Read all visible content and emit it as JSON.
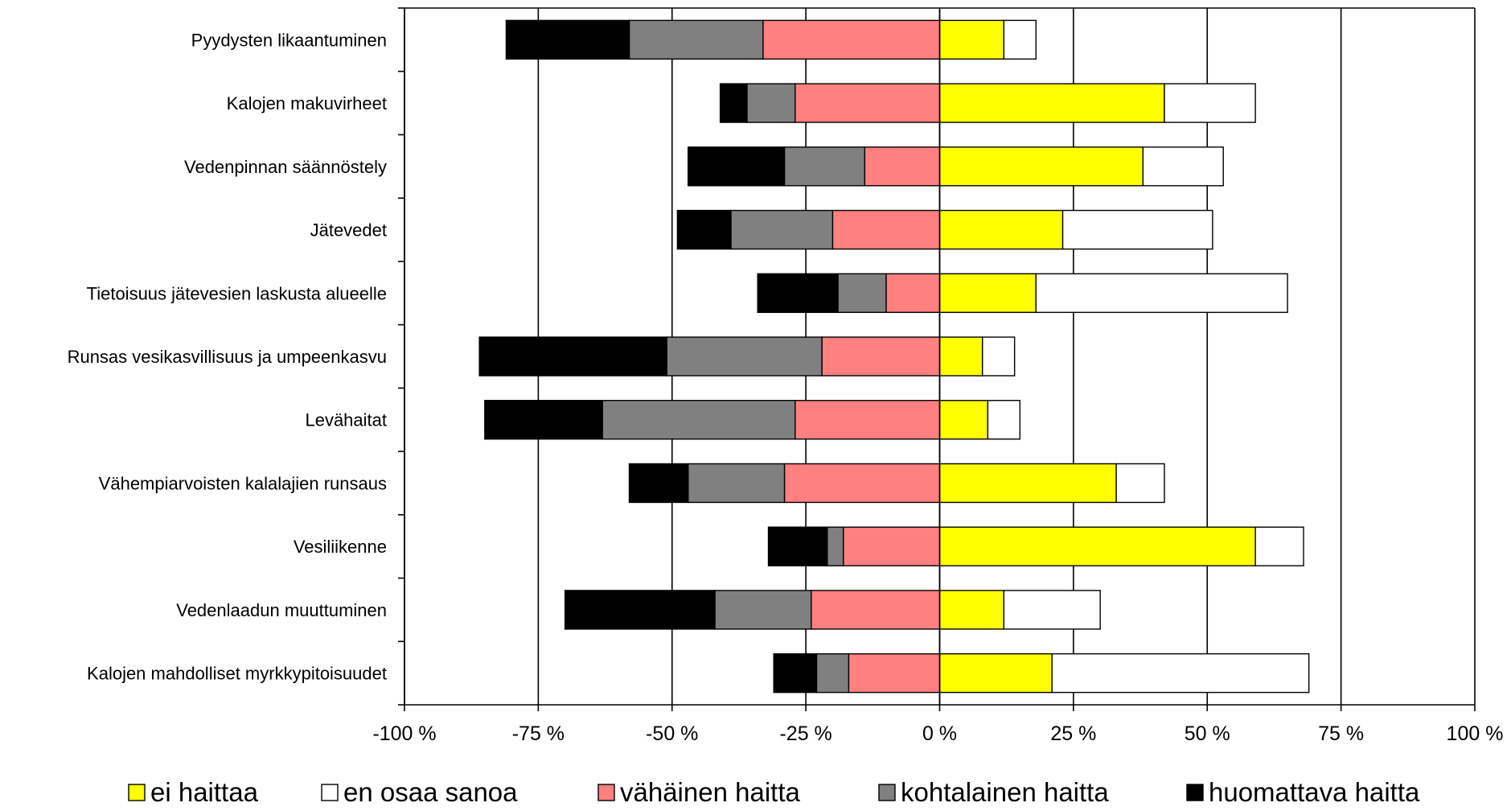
{
  "chart_data": {
    "type": "bar",
    "orientation": "horizontal",
    "stacked": "diverging",
    "categories": [
      "Pyydysten likaantuminen",
      "Kalojen makuvirheet",
      "Vedenpinnan säännöstely",
      "Jätevedet",
      "Tietoisuus jätevesien laskusta alueelle",
      "Runsas vesikasvillisuus ja umpeenkasvu",
      "Levähaitat",
      "Vähempiarvoisten kalalajien runsaus",
      "Vesiliikenne",
      "Vedenlaadun muuttuminen",
      "Kalojen mahdolliset myrkkypitoisuudet"
    ],
    "series": [
      {
        "name": "ei haittaa",
        "side": "positive",
        "color": "#ffff00",
        "values": [
          12,
          42,
          38,
          23,
          18,
          8,
          9,
          33,
          59,
          12,
          21
        ]
      },
      {
        "name": "en osaa sanoa",
        "side": "positive",
        "color": "#ffffff",
        "values": [
          6,
          17,
          15,
          28,
          47,
          6,
          6,
          9,
          9,
          18,
          48
        ]
      },
      {
        "name": "vähäinen haitta",
        "side": "negative",
        "color": "#ff8080",
        "values": [
          33,
          27,
          14,
          20,
          10,
          22,
          27,
          29,
          18,
          24,
          17
        ]
      },
      {
        "name": "kohtalainen haitta",
        "side": "negative",
        "color": "#808080",
        "values": [
          25,
          9,
          15,
          19,
          9,
          29,
          36,
          18,
          3,
          18,
          6
        ]
      },
      {
        "name": "huomattava haitta",
        "side": "negative",
        "color": "#000000",
        "values": [
          23,
          5,
          18,
          10,
          15,
          35,
          22,
          11,
          11,
          28,
          8
        ]
      }
    ],
    "xlim": [
      -100,
      100
    ],
    "xticks": [
      -100,
      -75,
      -50,
      -25,
      0,
      25,
      50,
      75,
      100
    ],
    "xtick_labels": [
      "-100 %",
      "-75 %",
      "-50 %",
      "-25 %",
      "0 %",
      "25 %",
      "50 %",
      "75 %",
      "100 %"
    ],
    "grid": "vertical",
    "legend_position": "bottom"
  }
}
